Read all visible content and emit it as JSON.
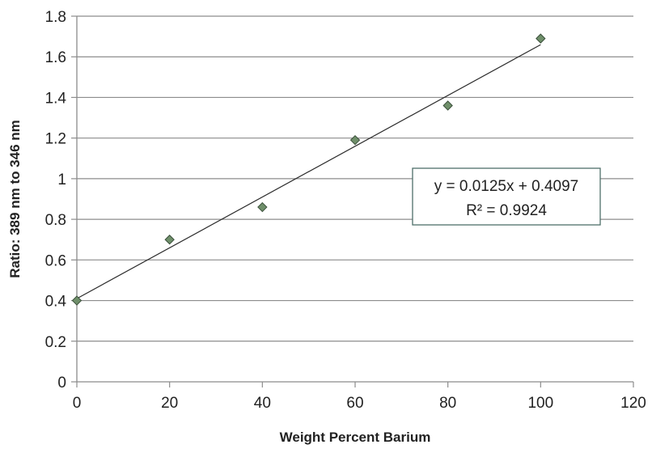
{
  "chart_data": {
    "type": "scatter",
    "title": "",
    "xlabel": "Weight Percent Barium",
    "ylabel": "Ratio:  389 nm to 346 nm",
    "xlim": [
      0,
      120
    ],
    "ylim": [
      0,
      1.8
    ],
    "x_ticks": [
      0,
      20,
      40,
      60,
      80,
      100,
      120
    ],
    "y_ticks": [
      0,
      0.2,
      0.4,
      0.6,
      0.8,
      1,
      1.2,
      1.4,
      1.6,
      1.8
    ],
    "grid": "horizontal",
    "legend": "none",
    "marker": "diamond",
    "marker_color": "#6f8f6a",
    "series": [
      {
        "x": [
          0,
          20,
          40,
          60,
          80,
          100
        ],
        "y": [
          0.4,
          0.7,
          0.86,
          1.19,
          1.36,
          1.69
        ]
      }
    ],
    "trendline": {
      "slope": 0.0125,
      "intercept": 0.4097,
      "x_range": [
        0,
        100
      ],
      "equation": "y = 0.0125x + 0.4097",
      "r_squared": "R² = 0.9924"
    }
  }
}
